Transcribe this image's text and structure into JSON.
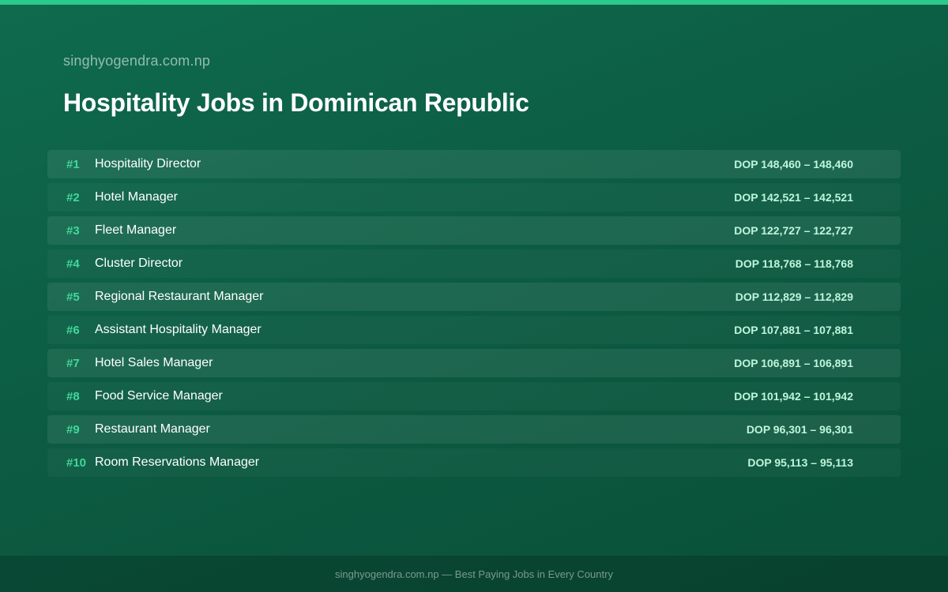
{
  "header": {
    "site_name": "singhyogendra.com.np",
    "title": "Hospitality Jobs in Dominican Republic"
  },
  "jobs": [
    {
      "rank": "#1",
      "title": "Hospitality Director",
      "salary": "DOP 148,460 – 148,460"
    },
    {
      "rank": "#2",
      "title": "Hotel Manager",
      "salary": "DOP 142,521 – 142,521"
    },
    {
      "rank": "#3",
      "title": "Fleet Manager",
      "salary": "DOP 122,727 – 122,727"
    },
    {
      "rank": "#4",
      "title": "Cluster Director",
      "salary": "DOP 118,768 – 118,768"
    },
    {
      "rank": "#5",
      "title": "Regional Restaurant Manager",
      "salary": "DOP 112,829 – 112,829"
    },
    {
      "rank": "#6",
      "title": "Assistant Hospitality Manager",
      "salary": "DOP 107,881 – 107,881"
    },
    {
      "rank": "#7",
      "title": "Hotel Sales Manager",
      "salary": "DOP 106,891 – 106,891"
    },
    {
      "rank": "#8",
      "title": "Food Service Manager",
      "salary": "DOP 101,942 – 101,942"
    },
    {
      "rank": "#9",
      "title": "Restaurant Manager",
      "salary": "DOP 96,301 – 96,301"
    },
    {
      "rank": "#10",
      "title": "Room Reservations Manager",
      "salary": "DOP 95,113 – 95,113"
    }
  ],
  "footer": {
    "text": "singhyogendra.com.np — Best Paying Jobs in Every Country"
  },
  "colors": {
    "accent": "#2bc98a",
    "rank": "#3fd99a",
    "background": "#0c5c43"
  }
}
